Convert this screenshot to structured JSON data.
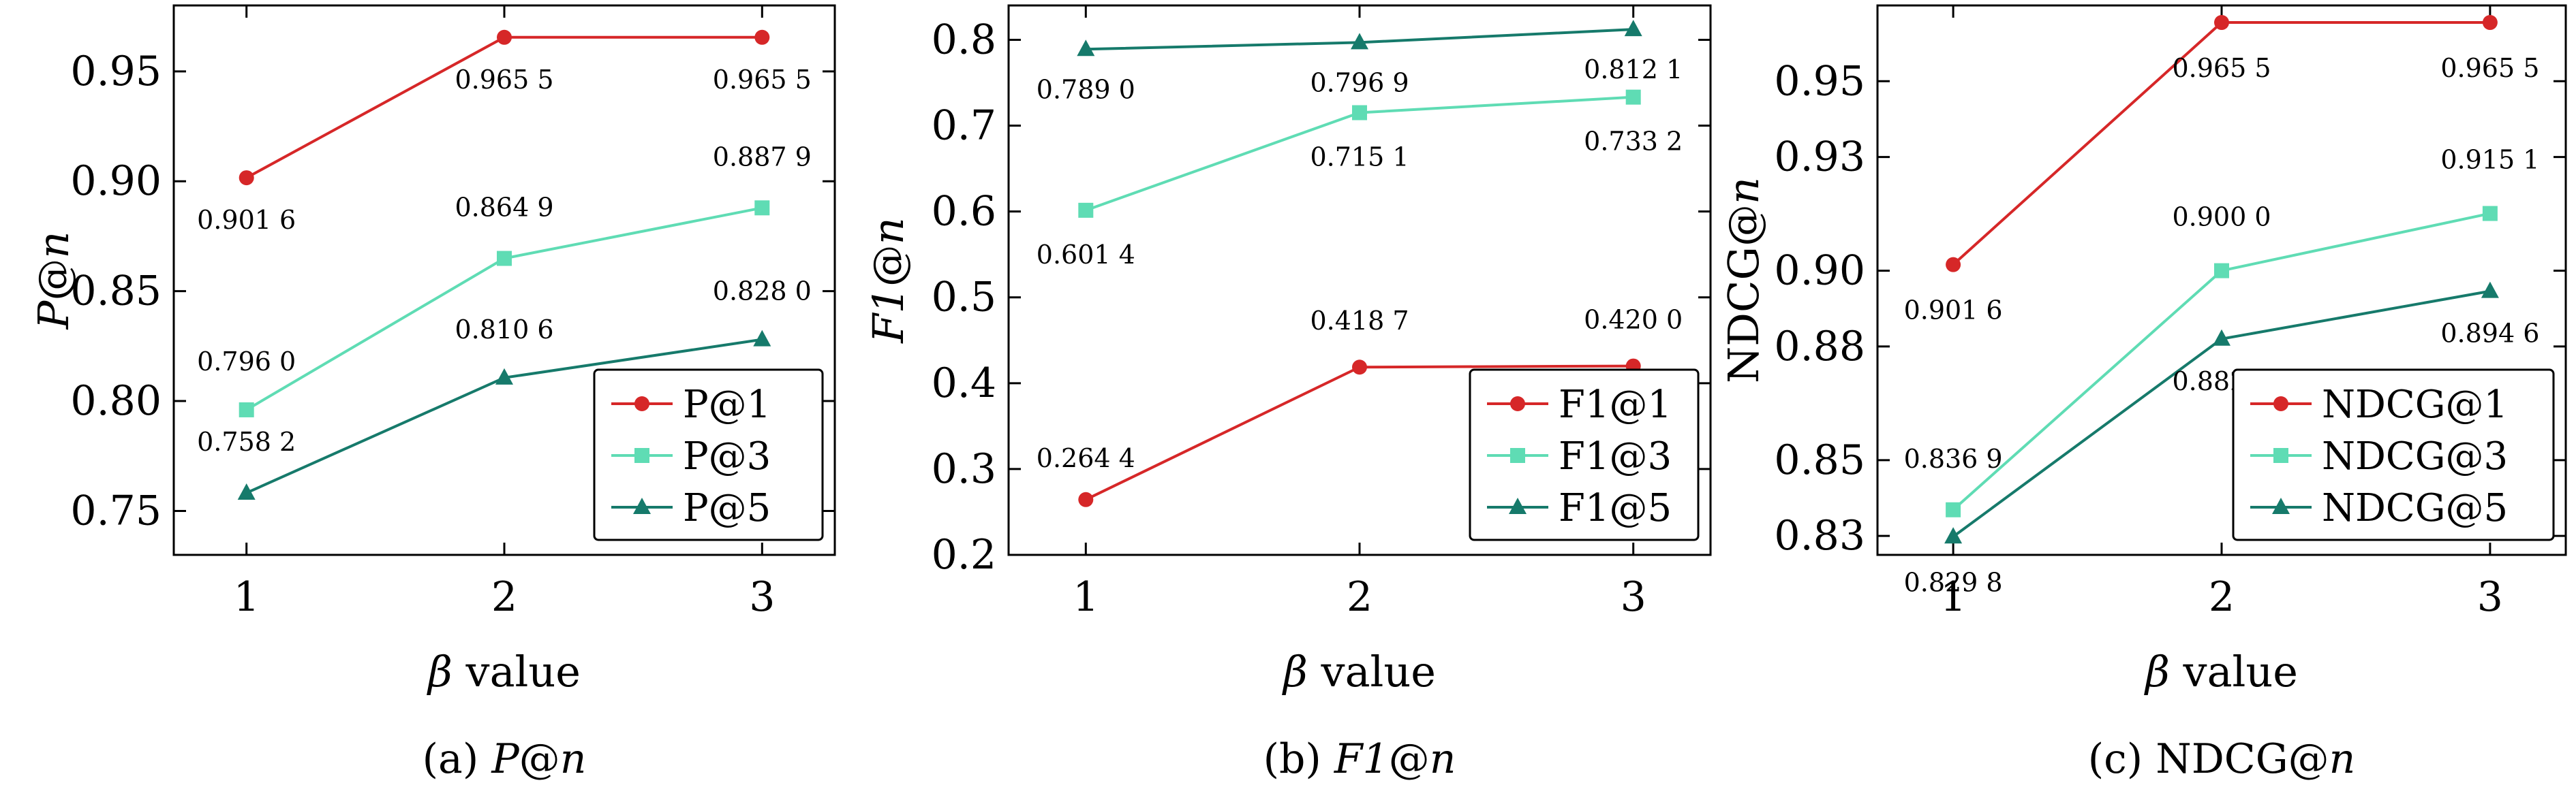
{
  "chart_data": [
    {
      "type": "line",
      "x": [
        1,
        2,
        3
      ],
      "xticks": [
        "1",
        "2",
        "3"
      ],
      "xlabel": "β value",
      "ylabel": "P@n",
      "ylim": [
        0.73,
        0.98
      ],
      "yticks": [
        0.75,
        0.8,
        0.85,
        0.9,
        0.95
      ],
      "ytick_labels": [
        "0.75",
        "0.80",
        "0.85",
        "0.90",
        "0.95"
      ],
      "legend_position": "bottom-right",
      "caption": "(a) P@n",
      "series": [
        {
          "name": "P@1",
          "color": "#d62728",
          "marker": "circle",
          "values": [
            0.9016,
            0.9655,
            0.9655
          ],
          "labels": [
            "0.901 6",
            "0.965 5",
            "0.965 5"
          ]
        },
        {
          "name": "P@3",
          "color": "#5fdcb4",
          "marker": "square",
          "values": [
            0.796,
            0.8649,
            0.8879
          ],
          "labels": [
            "0.796 0",
            "0.864 9",
            "0.887 9"
          ]
        },
        {
          "name": "P@5",
          "color": "#167a6b",
          "marker": "triangle",
          "values": [
            0.7582,
            0.8106,
            0.828
          ],
          "labels": [
            "0.758 2",
            "0.810 6",
            "0.828 0"
          ]
        }
      ]
    },
    {
      "type": "line",
      "x": [
        1,
        2,
        3
      ],
      "xticks": [
        "1",
        "2",
        "3"
      ],
      "xlabel": "β value",
      "ylabel": "F1@n",
      "ylim": [
        0.2,
        0.84
      ],
      "yticks": [
        0.2,
        0.3,
        0.4,
        0.5,
        0.6,
        0.7,
        0.8
      ],
      "ytick_labels": [
        "0.2",
        "0.3",
        "0.4",
        "0.5",
        "0.6",
        "0.7",
        "0.8"
      ],
      "legend_position": "bottom-right",
      "caption": "(b) F1@n",
      "series": [
        {
          "name": "F1@1",
          "color": "#d62728",
          "marker": "circle",
          "values": [
            0.2644,
            0.4187,
            0.42
          ],
          "labels": [
            "0.264 4",
            "0.418 7",
            "0.420 0"
          ]
        },
        {
          "name": "F1@3",
          "color": "#5fdcb4",
          "marker": "square",
          "values": [
            0.6014,
            0.7151,
            0.7332
          ],
          "labels": [
            "0.601 4",
            "0.715 1",
            "0.733 2"
          ]
        },
        {
          "name": "F1@5",
          "color": "#167a6b",
          "marker": "triangle",
          "values": [
            0.789,
            0.7969,
            0.8121
          ],
          "labels": [
            "0.789 0",
            "0.796 9",
            "0.812 1"
          ]
        }
      ]
    },
    {
      "type": "line",
      "x": [
        1,
        2,
        3
      ],
      "xticks": [
        "1",
        "2",
        "3"
      ],
      "xlabel": "β value",
      "ylabel": "NDCG@n",
      "ylim": [
        0.825,
        0.97
      ],
      "yticks": [
        0.83,
        0.85,
        0.88,
        0.9,
        0.93,
        0.95
      ],
      "ytick_labels": [
        "0.83",
        "0.85",
        "0.88",
        "0.90",
        "0.93",
        "0.95"
      ],
      "legend_position": "bottom-right",
      "caption": "(c) NDCG@n",
      "series": [
        {
          "name": "NDCG@1",
          "color": "#d62728",
          "marker": "circle",
          "values": [
            0.9016,
            0.9655,
            0.9655
          ],
          "labels": [
            "0.901 6",
            "0.965 5",
            "0.965 5"
          ]
        },
        {
          "name": "NDCG@3",
          "color": "#5fdcb4",
          "marker": "square",
          "values": [
            0.8369,
            0.9,
            0.9151
          ],
          "labels": [
            "0.836 9",
            "0.900 0",
            "0.915 1"
          ]
        },
        {
          "name": "NDCG@5",
          "color": "#167a6b",
          "marker": "triangle",
          "values": [
            0.8298,
            0.882,
            0.8946
          ],
          "labels": [
            "0.829 8",
            "0.882 0",
            "0.894 6"
          ]
        }
      ]
    }
  ]
}
